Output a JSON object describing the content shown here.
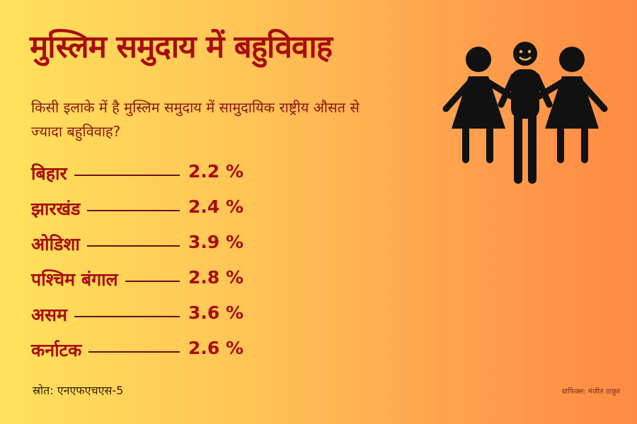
{
  "chart_data": {
    "type": "table",
    "title": "मुस्लिम समुदाय में बहुविवाह",
    "subtitle": "किसी इलाके में है मुस्लिम समुदाय में सामुदायिक राष्ट्रीय औसत से ज्यादा बहुविवाह?",
    "rows": [
      {
        "state": "बिहार",
        "value": 2.2,
        "label": "2.2 %"
      },
      {
        "state": "झारखंड",
        "value": 2.4,
        "label": "2.4 %"
      },
      {
        "state": "ओडिशा",
        "value": 3.9,
        "label": "3.9 %"
      },
      {
        "state": "पश्चिम बंगाल",
        "value": 2.8,
        "label": "2.8 %"
      },
      {
        "state": "असम",
        "value": 3.6,
        "label": "3.6 %"
      },
      {
        "state": "कर्नाटक",
        "value": 2.6,
        "label": "2.6 %"
      }
    ],
    "source": "स्रोत: एनएफएचएस-5",
    "credit": "ग्राफिक्स: मंजीत ठाकुर"
  },
  "colors": {
    "text_accent": "#a80d0d",
    "background_start": "#ffe25c",
    "background_end": "#ff8a43",
    "icon": "#111111"
  },
  "icon": "family-polygamy-icon"
}
